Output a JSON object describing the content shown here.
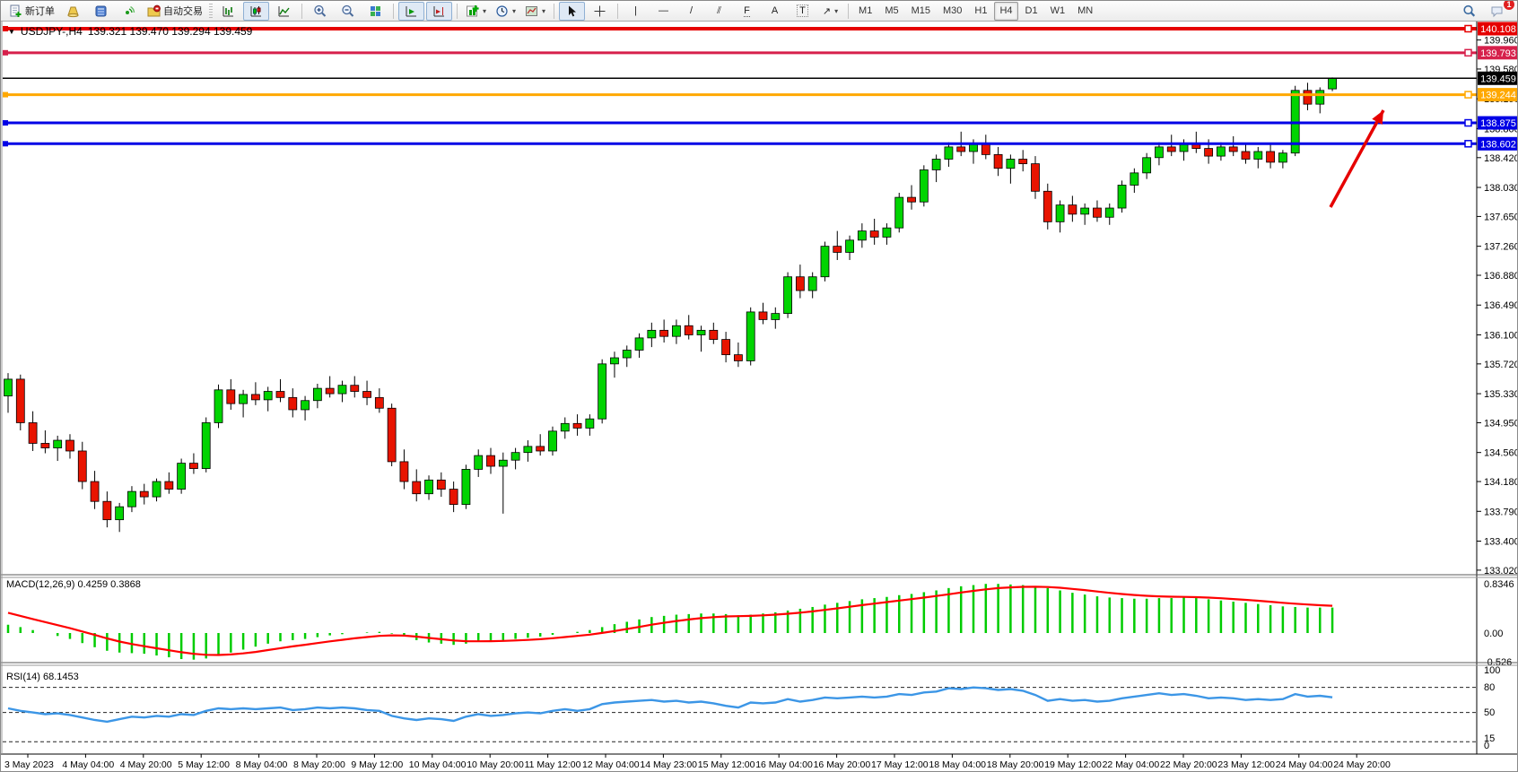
{
  "toolbar": {
    "new_order_label": "新订单",
    "auto_trading_label": "自动交易",
    "timeframes": [
      "M1",
      "M5",
      "M15",
      "M30",
      "H1",
      "H4",
      "D1",
      "W1",
      "MN"
    ],
    "active_timeframe": "H4",
    "notification_count": "1"
  },
  "icons": {
    "title_caret": "▼",
    "dropdown_caret": "▾",
    "vertical_line": "|",
    "horizontal_line": "—",
    "trendline": "/",
    "channel": "⫽",
    "fibonacci": "F",
    "text": "A",
    "text_label": "T",
    "arrows": "↗"
  },
  "chart": {
    "symbol": "USDJPY-,H4",
    "ohlc": "139.321 139.470 139.294 139.459"
  },
  "indicators": {
    "macd_label": "MACD(12,26,9) 0.4259 0.3868",
    "rsi_label": "RSI(14) 68.1453"
  },
  "chart_data": {
    "type": "candlestick",
    "symbol": "USDJPY-",
    "timeframe": "H4",
    "current": {
      "open": 139.321,
      "high": 139.47,
      "low": 139.294,
      "close": 139.459
    },
    "price_axis": {
      "max": 140.19,
      "min": 132.96,
      "ticks": [
        "139.960",
        "139.580",
        "139.190",
        "138.800",
        "138.420",
        "138.030",
        "137.650",
        "137.260",
        "136.880",
        "136.490",
        "136.100",
        "135.720",
        "135.330",
        "134.950",
        "134.560",
        "134.180",
        "133.790",
        "133.400",
        "133.020"
      ]
    },
    "time_labels": [
      "3 May 2023",
      "4 May 04:00",
      "4 May 20:00",
      "5 May 12:00",
      "8 May 04:00",
      "8 May 20:00",
      "9 May 12:00",
      "10 May 04:00",
      "10 May 20:00",
      "11 May 12:00",
      "12 May 04:00",
      "14 May 23:00",
      "15 May 12:00",
      "16 May 04:00",
      "16 May 20:00",
      "17 May 12:00",
      "18 May 04:00",
      "18 May 20:00",
      "19 May 12:00",
      "22 May 04:00",
      "22 May 20:00",
      "23 May 12:00",
      "24 May 04:00",
      "24 May 20:00"
    ],
    "hlines": [
      {
        "price": 140.108,
        "color": "#E60000",
        "width": 4,
        "label_bg": "#E60000",
        "handle": true
      },
      {
        "price": 139.793,
        "color": "#D6204B",
        "width": 3,
        "label_bg": "#D6204B",
        "handle": true
      },
      {
        "price": 139.459,
        "color": "#000000",
        "width": 1.5,
        "label_bg": "#000000",
        "handle": false
      },
      {
        "price": 139.244,
        "color": "#FFA800",
        "width": 3,
        "label_bg": "#FFA800",
        "handle": true
      },
      {
        "price": 138.875,
        "color": "#0000E6",
        "width": 3,
        "label_bg": "#0000E6",
        "handle": true
      },
      {
        "price": 138.602,
        "color": "#0000E6",
        "width": 3,
        "label_bg": "#0000E6",
        "handle": true
      }
    ],
    "colors": {
      "bull": "#00D400",
      "bear": "#E81400",
      "outline": "#000000",
      "wick": "#000000"
    },
    "candles": [
      [
        135.3,
        135.6,
        135.08,
        135.52
      ],
      [
        135.52,
        135.58,
        134.85,
        134.95
      ],
      [
        134.95,
        135.1,
        134.58,
        134.68
      ],
      [
        134.68,
        134.85,
        134.55,
        134.62
      ],
      [
        134.62,
        134.78,
        134.45,
        134.72
      ],
      [
        134.72,
        134.8,
        134.48,
        134.58
      ],
      [
        134.58,
        134.7,
        134.08,
        134.18
      ],
      [
        134.18,
        134.32,
        133.82,
        133.92
      ],
      [
        133.92,
        134.05,
        133.58,
        133.68
      ],
      [
        133.68,
        133.9,
        133.52,
        133.85
      ],
      [
        133.85,
        134.12,
        133.78,
        134.05
      ],
      [
        134.05,
        134.15,
        133.88,
        133.98
      ],
      [
        133.98,
        134.22,
        133.92,
        134.18
      ],
      [
        134.18,
        134.3,
        134.02,
        134.08
      ],
      [
        134.08,
        134.48,
        134.02,
        134.42
      ],
      [
        134.42,
        134.55,
        134.28,
        134.35
      ],
      [
        134.35,
        135.02,
        134.3,
        134.95
      ],
      [
        134.95,
        135.45,
        134.88,
        135.38
      ],
      [
        135.38,
        135.52,
        135.12,
        135.2
      ],
      [
        135.2,
        135.38,
        135.02,
        135.32
      ],
      [
        135.32,
        135.48,
        135.18,
        135.25
      ],
      [
        135.25,
        135.42,
        135.1,
        135.36
      ],
      [
        135.36,
        135.52,
        135.22,
        135.28
      ],
      [
        135.28,
        135.4,
        135.02,
        135.12
      ],
      [
        135.12,
        135.3,
        134.98,
        135.24
      ],
      [
        135.24,
        135.46,
        135.14,
        135.4
      ],
      [
        135.4,
        135.56,
        135.28,
        135.33
      ],
      [
        135.33,
        135.5,
        135.22,
        135.44
      ],
      [
        135.44,
        135.56,
        135.28,
        135.36
      ],
      [
        135.36,
        135.5,
        135.18,
        135.28
      ],
      [
        135.28,
        135.4,
        135.08,
        135.14
      ],
      [
        135.14,
        135.2,
        134.38,
        134.44
      ],
      [
        134.44,
        134.6,
        134.08,
        134.18
      ],
      [
        134.18,
        134.34,
        133.92,
        134.02
      ],
      [
        134.02,
        134.26,
        133.94,
        134.2
      ],
      [
        134.2,
        134.3,
        133.98,
        134.08
      ],
      [
        134.08,
        134.18,
        133.78,
        133.88
      ],
      [
        133.88,
        134.4,
        133.82,
        134.34
      ],
      [
        134.34,
        134.6,
        134.24,
        134.52
      ],
      [
        134.52,
        134.62,
        134.28,
        134.38
      ],
      [
        134.38,
        134.56,
        133.76,
        134.46
      ],
      [
        134.46,
        134.62,
        134.34,
        134.56
      ],
      [
        134.56,
        134.72,
        134.44,
        134.64
      ],
      [
        134.64,
        134.8,
        134.52,
        134.58
      ],
      [
        134.58,
        134.9,
        134.52,
        134.84
      ],
      [
        134.84,
        135.02,
        134.74,
        134.94
      ],
      [
        134.94,
        135.06,
        134.78,
        134.88
      ],
      [
        134.88,
        135.06,
        134.78,
        135.0
      ],
      [
        135.0,
        135.78,
        134.94,
        135.72
      ],
      [
        135.72,
        135.88,
        135.54,
        135.8
      ],
      [
        135.8,
        135.96,
        135.68,
        135.9
      ],
      [
        135.9,
        136.12,
        135.8,
        136.06
      ],
      [
        136.06,
        136.26,
        135.94,
        136.16
      ],
      [
        136.16,
        136.3,
        136.0,
        136.08
      ],
      [
        136.08,
        136.3,
        135.98,
        136.22
      ],
      [
        136.22,
        136.36,
        136.04,
        136.1
      ],
      [
        136.1,
        136.22,
        135.88,
        136.16
      ],
      [
        136.16,
        136.26,
        135.98,
        136.04
      ],
      [
        136.04,
        136.14,
        135.74,
        135.84
      ],
      [
        135.84,
        136.0,
        135.68,
        135.76
      ],
      [
        135.76,
        136.46,
        135.7,
        136.4
      ],
      [
        136.4,
        136.52,
        136.24,
        136.3
      ],
      [
        136.3,
        136.46,
        136.18,
        136.38
      ],
      [
        136.38,
        136.92,
        136.32,
        136.86
      ],
      [
        136.86,
        137.02,
        136.58,
        136.68
      ],
      [
        136.68,
        136.92,
        136.58,
        136.86
      ],
      [
        136.86,
        137.32,
        136.8,
        137.26
      ],
      [
        137.26,
        137.46,
        137.08,
        137.18
      ],
      [
        137.18,
        137.4,
        137.08,
        137.34
      ],
      [
        137.34,
        137.56,
        137.24,
        137.46
      ],
      [
        137.46,
        137.62,
        137.28,
        137.38
      ],
      [
        137.38,
        137.56,
        137.28,
        137.5
      ],
      [
        137.5,
        137.96,
        137.44,
        137.9
      ],
      [
        137.9,
        138.06,
        137.74,
        137.84
      ],
      [
        137.84,
        138.32,
        137.78,
        138.26
      ],
      [
        138.26,
        138.46,
        138.1,
        138.4
      ],
      [
        138.4,
        138.62,
        138.3,
        138.56
      ],
      [
        138.56,
        138.76,
        138.44,
        138.5
      ],
      [
        138.5,
        138.66,
        138.34,
        138.6
      ],
      [
        138.6,
        138.72,
        138.4,
        138.46
      ],
      [
        138.46,
        138.56,
        138.18,
        138.28
      ],
      [
        138.28,
        138.46,
        138.08,
        138.4
      ],
      [
        138.4,
        138.52,
        138.24,
        138.34
      ],
      [
        138.34,
        138.44,
        137.88,
        137.98
      ],
      [
        137.98,
        138.08,
        137.48,
        137.58
      ],
      [
        137.58,
        137.86,
        137.44,
        137.8
      ],
      [
        137.8,
        137.92,
        137.58,
        137.68
      ],
      [
        137.68,
        137.82,
        137.54,
        137.76
      ],
      [
        137.76,
        137.86,
        137.58,
        137.64
      ],
      [
        137.64,
        137.82,
        137.54,
        137.76
      ],
      [
        137.76,
        138.12,
        137.7,
        138.06
      ],
      [
        138.06,
        138.28,
        137.96,
        138.22
      ],
      [
        138.22,
        138.48,
        138.14,
        138.42
      ],
      [
        138.42,
        138.62,
        138.32,
        138.56
      ],
      [
        138.56,
        138.72,
        138.44,
        138.5
      ],
      [
        138.5,
        138.66,
        138.38,
        138.6
      ],
      [
        138.6,
        138.76,
        138.48,
        138.54
      ],
      [
        138.54,
        138.66,
        138.34,
        138.44
      ],
      [
        138.44,
        138.62,
        138.38,
        138.56
      ],
      [
        138.56,
        138.7,
        138.44,
        138.5
      ],
      [
        138.5,
        138.6,
        138.34,
        138.4
      ],
      [
        138.4,
        138.56,
        138.28,
        138.5
      ],
      [
        138.5,
        138.6,
        138.28,
        138.36
      ],
      [
        138.36,
        138.52,
        138.28,
        138.48
      ],
      [
        138.48,
        139.36,
        138.44,
        139.3
      ],
      [
        139.3,
        139.4,
        139.04,
        139.12
      ],
      [
        139.12,
        139.34,
        139.0,
        139.3
      ],
      [
        139.32,
        139.47,
        139.29,
        139.46
      ]
    ],
    "macd": {
      "label": "MACD(12,26,9)",
      "macd_value": 0.4259,
      "signal_value": 0.3868,
      "scale": [
        "0.8346",
        "0.00",
        "-0.526"
      ],
      "histogram_color": "#00CC00",
      "signal_color": "#FF0000",
      "signal_start": 0.4,
      "histogram": [
        0.14,
        0.1,
        0.05,
        0.0,
        -0.05,
        -0.1,
        -0.17,
        -0.24,
        -0.3,
        -0.33,
        -0.34,
        -0.35,
        -0.38,
        -0.41,
        -0.44,
        -0.45,
        -0.43,
        -0.38,
        -0.33,
        -0.28,
        -0.23,
        -0.18,
        -0.14,
        -0.12,
        -0.1,
        -0.07,
        -0.04,
        -0.02,
        0.0,
        0.01,
        0.02,
        -0.01,
        -0.06,
        -0.12,
        -0.16,
        -0.18,
        -0.2,
        -0.18,
        -0.15,
        -0.13,
        -0.12,
        -0.1,
        -0.08,
        -0.06,
        -0.03,
        0.0,
        0.02,
        0.05,
        0.1,
        0.15,
        0.19,
        0.23,
        0.27,
        0.29,
        0.31,
        0.32,
        0.33,
        0.33,
        0.32,
        0.3,
        0.31,
        0.33,
        0.35,
        0.38,
        0.41,
        0.44,
        0.48,
        0.51,
        0.54,
        0.57,
        0.59,
        0.61,
        0.64,
        0.66,
        0.69,
        0.72,
        0.76,
        0.79,
        0.81,
        0.83,
        0.83,
        0.82,
        0.81,
        0.79,
        0.76,
        0.72,
        0.68,
        0.65,
        0.62,
        0.6,
        0.59,
        0.58,
        0.58,
        0.59,
        0.59,
        0.6,
        0.59,
        0.57,
        0.55,
        0.53,
        0.51,
        0.49,
        0.47,
        0.45,
        0.44,
        0.43,
        0.43,
        0.43
      ]
    },
    "rsi": {
      "label": "RSI(14)",
      "value": 68.1453,
      "color": "#3C96E6",
      "levels": [
        80,
        50,
        15
      ],
      "scale": [
        "100",
        "80",
        "50",
        "15",
        "0"
      ],
      "series": [
        55,
        52,
        50,
        48,
        49,
        47,
        44,
        41,
        39,
        42,
        45,
        44,
        46,
        45,
        48,
        47,
        52,
        55,
        54,
        55,
        54,
        55,
        56,
        53,
        54,
        56,
        55,
        56,
        55,
        53,
        52,
        46,
        43,
        41,
        43,
        42,
        40,
        45,
        48,
        46,
        47,
        49,
        50,
        49,
        52,
        54,
        52,
        54,
        60,
        62,
        63,
        64,
        65,
        63,
        64,
        62,
        63,
        61,
        58,
        56,
        62,
        61,
        62,
        66,
        63,
        65,
        68,
        67,
        68,
        69,
        68,
        69,
        72,
        71,
        74,
        75,
        79,
        78,
        80,
        79,
        77,
        78,
        76,
        71,
        64,
        66,
        64,
        65,
        63,
        64,
        67,
        69,
        71,
        73,
        71,
        72,
        70,
        67,
        68,
        67,
        65,
        66,
        65,
        66,
        72,
        69,
        70,
        68.15
      ]
    },
    "annotation_arrow": {
      "from": [
        1482,
        230
      ],
      "to": [
        1541,
        122
      ],
      "color": "#E60000"
    }
  }
}
